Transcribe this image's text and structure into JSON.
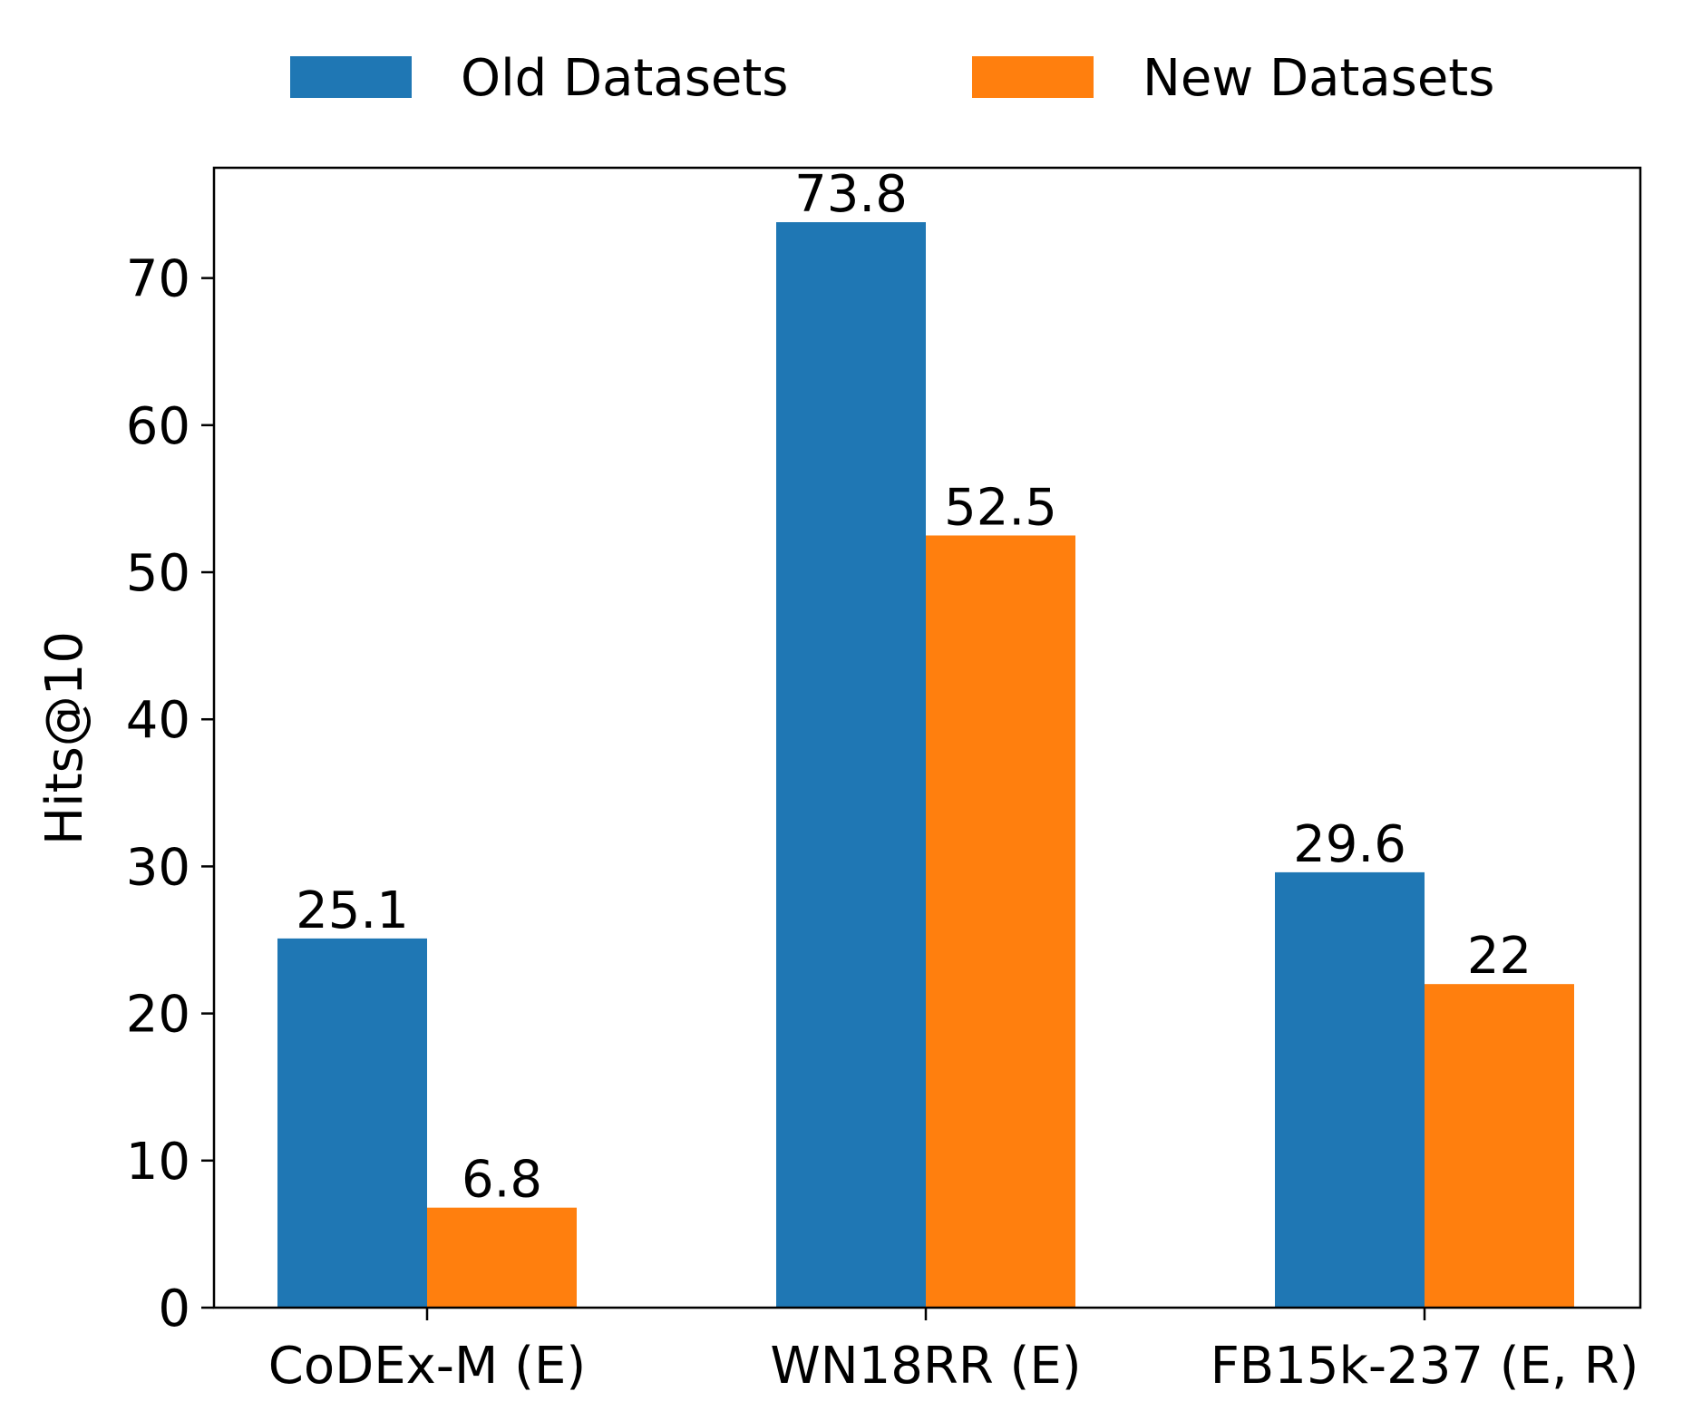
{
  "chart_data": {
    "type": "bar",
    "title": "",
    "xlabel": "",
    "ylabel": "Hits@10",
    "categories": [
      "CoDEx-M (E)",
      "WN18RR (E)",
      "FB15k-237 (E, R)"
    ],
    "series": [
      {
        "name": "Old Datasets",
        "values": [
          25.1,
          73.8,
          29.6
        ],
        "labels": [
          "25.1",
          "73.8",
          "29.6"
        ],
        "color": "#1f77b4"
      },
      {
        "name": "New Datasets",
        "values": [
          6.8,
          52.5,
          22
        ],
        "labels": [
          "6.8",
          "52.5",
          "22"
        ],
        "color": "#ff7f0e"
      }
    ],
    "yticks": [
      0,
      10,
      20,
      30,
      40,
      50,
      60,
      70
    ],
    "ylim": [
      0,
      77.5
    ],
    "grid": false,
    "legend_position": "top-center"
  }
}
